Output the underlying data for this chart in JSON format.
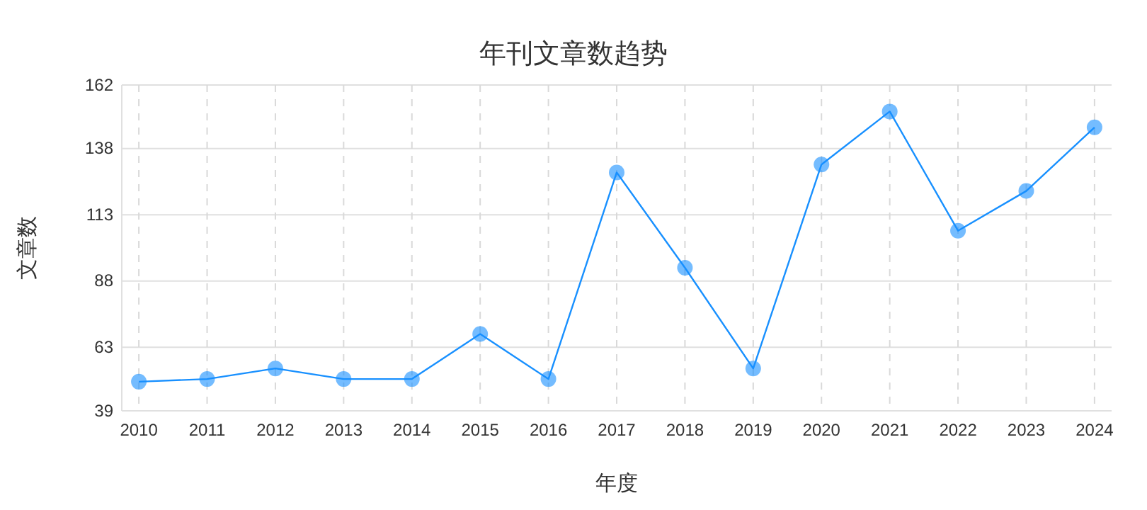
{
  "chart_data": {
    "type": "line",
    "title": "年刊文章数趋势",
    "xlabel": "年度",
    "ylabel": "文章数",
    "categories": [
      "2010",
      "2011",
      "2012",
      "2013",
      "2014",
      "2015",
      "2016",
      "2017",
      "2018",
      "2019",
      "2020",
      "2021",
      "2022",
      "2023",
      "2024"
    ],
    "series": [
      {
        "color": "#1890ff",
        "values": [
          50,
          51,
          55,
          51,
          51,
          68,
          51,
          129,
          93,
          55,
          132,
          152,
          107,
          122,
          146
        ]
      }
    ],
    "ylim": [
      39,
      162
    ],
    "yticks": [
      39,
      63,
      88,
      113,
      138,
      162
    ],
    "grid": true,
    "marker": "circle",
    "line_style": "solid"
  }
}
